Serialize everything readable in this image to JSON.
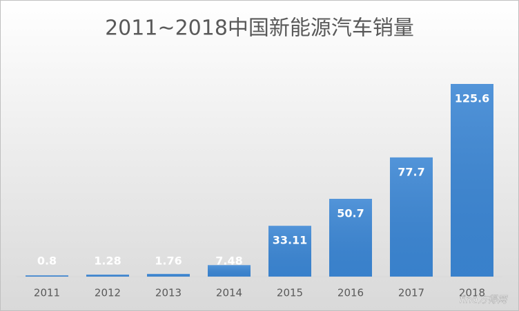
{
  "chart_data": {
    "type": "bar",
    "title": "2011~2018中国新能源汽车销量",
    "categories": [
      "2011",
      "2012",
      "2013",
      "2014",
      "2015",
      "2016",
      "2017",
      "2018"
    ],
    "values": [
      0.8,
      1.28,
      1.76,
      7.48,
      33.11,
      50.7,
      77.7,
      125.6
    ],
    "color": "#3b86d4",
    "watermark": "find方得网"
  }
}
